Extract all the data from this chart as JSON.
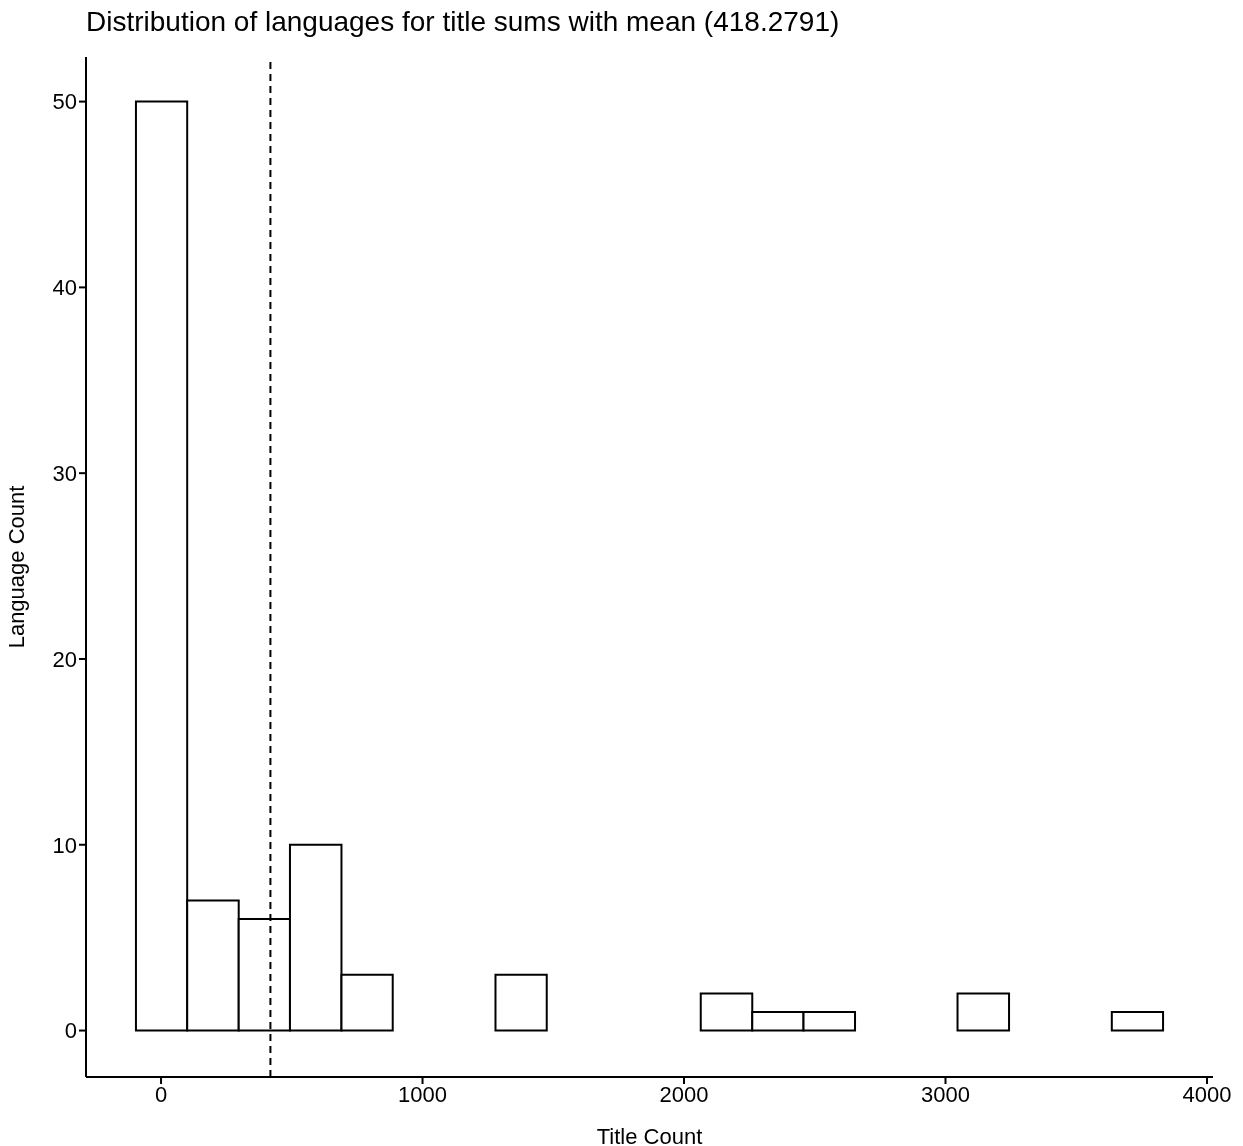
{
  "chart_data": {
    "type": "histogram",
    "title": "Distribution of languages for title sums with mean (418.2791)",
    "xlabel": "Title Count",
    "ylabel": "Language Count",
    "bins": [
      -96,
      100,
      297,
      493,
      690,
      886,
      1082,
      1279,
      1475,
      1672,
      1868,
      2064,
      2261,
      2457,
      2654,
      2850,
      3046,
      3243,
      3439,
      3636,
      3832
    ],
    "values": [
      50,
      7,
      6,
      10,
      3,
      0,
      0,
      3,
      0,
      0,
      0,
      2,
      1,
      1,
      0,
      0,
      2,
      0,
      0,
      1
    ],
    "color": "#ffffff",
    "xlim": [
      -287,
      4023
    ],
    "xticks": [
      0,
      1000,
      2000,
      3000,
      4000
    ],
    "ylim": [
      -2.5,
      52.4
    ],
    "yticks": [
      0,
      10,
      20,
      30,
      40,
      50
    ],
    "grid": false,
    "ref_lines": [
      {
        "axis": "x",
        "value": 418.2791,
        "line_style": "dashed"
      }
    ]
  }
}
